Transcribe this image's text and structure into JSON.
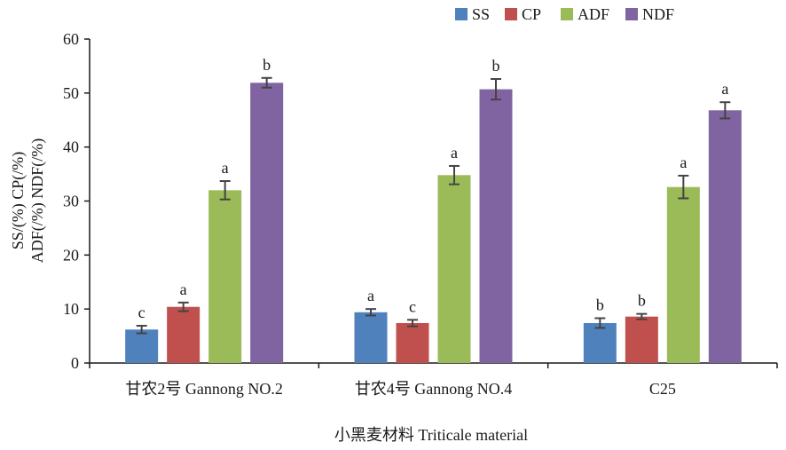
{
  "chart_data": {
    "type": "bar",
    "categories": [
      "甘农2号 Gannong NO.2",
      "甘农4号 Gannong NO.4",
      "C25"
    ],
    "series": [
      {
        "name": "SS",
        "color": "#4f81bd",
        "values": [
          6.2,
          9.4,
          7.4
        ],
        "errors": [
          0.7,
          0.6,
          0.9
        ],
        "letters": [
          "c",
          "a",
          "b"
        ]
      },
      {
        "name": "CP",
        "color": "#c0504d",
        "values": [
          10.4,
          7.4,
          8.6
        ],
        "errors": [
          0.8,
          0.6,
          0.5
        ],
        "letters": [
          "a",
          "c",
          "b"
        ]
      },
      {
        "name": "ADF",
        "color": "#9bbb59",
        "values": [
          32.0,
          34.8,
          32.6
        ],
        "errors": [
          1.7,
          1.7,
          2.1
        ],
        "letters": [
          "a",
          "a",
          "a"
        ]
      },
      {
        "name": "NDF",
        "color": "#8064a2",
        "values": [
          51.9,
          50.7,
          46.8
        ],
        "errors": [
          0.9,
          1.9,
          1.5
        ],
        "letters": [
          "b",
          "b",
          "a"
        ]
      }
    ],
    "ylabel_line1": "SS/(%)  CP(/%)",
    "ylabel_line2": "ADF(/%)  NDF(/%)",
    "xlabel": "小黑麦材料 Triticale material",
    "ylim": [
      0,
      60
    ],
    "yticks": [
      0,
      10,
      20,
      30,
      40,
      50,
      60
    ],
    "grid": false,
    "legend_position": "top-right"
  }
}
